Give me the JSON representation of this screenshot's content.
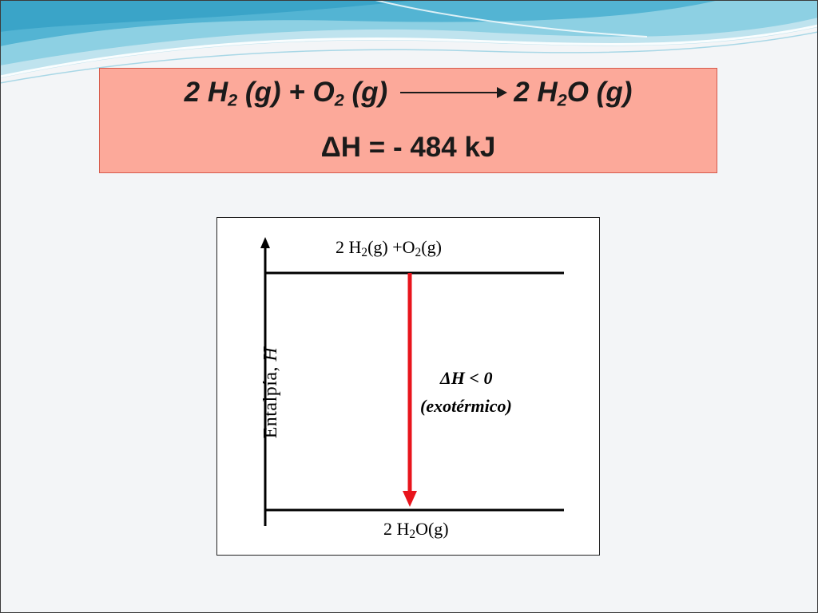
{
  "equation": {
    "reactant1": "2 H",
    "reactant1_sub": "2",
    "reactant1_state": " (g) + O",
    "reactant2_sub": "2",
    "reactant2_state": " (g)",
    "product": "2 H",
    "product_sub": "2",
    "product_rest": "O (g)",
    "delta_symbol": "Δ",
    "delta_text": "H = - 484 kJ"
  },
  "diagram": {
    "y_axis_label": "Entalpía, ",
    "y_axis_label_italic": "H",
    "top_level_a": "2 H",
    "top_level_a_sub": "2",
    "top_level_b": "(g) +O",
    "top_level_b_sub": "2",
    "top_level_c": "(g)",
    "bottom_level_a": "2 H",
    "bottom_level_sub": "2",
    "bottom_level_b": "O(g)",
    "delta_h": "ΔH < 0",
    "exothermic": "(exotérmico)"
  },
  "colors": {
    "equation_box_bg": "#fca99a",
    "arrow_red": "#e8141c",
    "wave_blue": "#5fb9d6"
  }
}
